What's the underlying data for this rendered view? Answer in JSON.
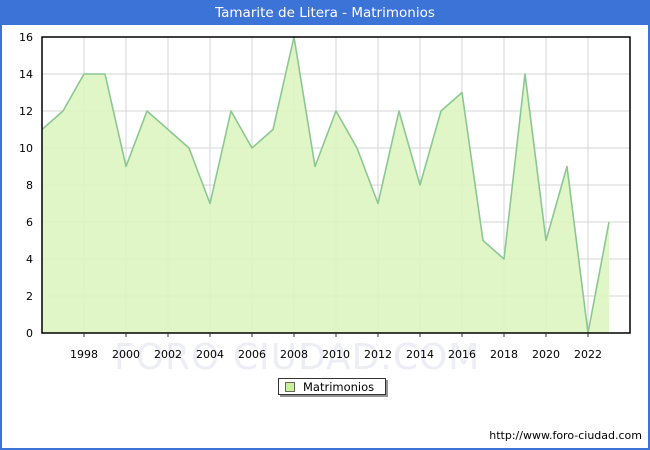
{
  "title": "Tamarite de Litera - Matrimonios",
  "watermark_text": "FORO CIUDAD.COM",
  "legend": {
    "label": "Matrimonios"
  },
  "footer": {
    "url": "http://www.foro-ciudad.com"
  },
  "colors": {
    "titlebar_blue": "#3b73d6",
    "window_border_blue": "#3b73d6",
    "area_fill_green": "#ddf5c1",
    "line_green": "#8cc793",
    "legend_swatch_green": "#c9f19b",
    "grid_gray": "#d6d6d6",
    "axis_black": "#000000",
    "watermark_gray": "#ecedf5"
  },
  "chart_data": {
    "type": "area",
    "title": "Tamarite de Litera - Matrimonios",
    "xlabel": "",
    "ylabel": "",
    "xlim": [
      1996,
      2024
    ],
    "ylim": [
      0,
      16
    ],
    "ytick_step": 2,
    "xtick_years": [
      1998,
      2000,
      2002,
      2004,
      2006,
      2008,
      2010,
      2012,
      2014,
      2016,
      2018,
      2020,
      2022
    ],
    "grid": true,
    "legend_position": "bottom-center",
    "series": [
      {
        "name": "Matrimonios",
        "x": [
          1996,
          1997,
          1998,
          1999,
          2000,
          2001,
          2002,
          2003,
          2004,
          2005,
          2006,
          2007,
          2008,
          2009,
          2010,
          2011,
          2012,
          2013,
          2014,
          2015,
          2016,
          2017,
          2018,
          2019,
          2020,
          2021,
          2022,
          2023
        ],
        "values": [
          11,
          12,
          14,
          14,
          9,
          12,
          11,
          10,
          7,
          12,
          10,
          11,
          16,
          9,
          12,
          10,
          7,
          12,
          8,
          12,
          13,
          5,
          4,
          14,
          5,
          9,
          0,
          6
        ]
      }
    ]
  }
}
